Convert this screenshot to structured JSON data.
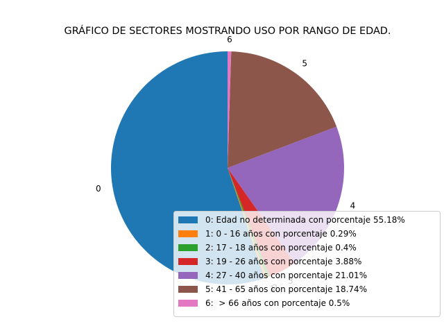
{
  "chart_data": {
    "type": "pie",
    "title": "GRÁFICO DE SECTORES MOSTRANDO USO POR RANGO DE EDAD.",
    "start_angle_deg": 90,
    "direction": "counterclockwise",
    "legend_position": "lower-right",
    "slices": [
      {
        "label": "0",
        "legend": "0: Edad no determinada con porcentaje 55.18%",
        "value": 55.18,
        "color": "#1f77b4"
      },
      {
        "label": "1",
        "legend": "1: 0 - 16 años con porcentaje 0.29%",
        "value": 0.29,
        "color": "#ff7f0e"
      },
      {
        "label": "2",
        "legend": "2: 17 - 18 años con porcentaje 0.4%",
        "value": 0.4,
        "color": "#2ca02c"
      },
      {
        "label": "3",
        "legend": "3: 19 - 26 años con porcentaje 3.88%",
        "value": 3.88,
        "color": "#d62728"
      },
      {
        "label": "4",
        "legend": "4: 27 - 40 años con porcentaje 21.01%",
        "value": 21.01,
        "color": "#9467bd"
      },
      {
        "label": "5",
        "legend": "5: 41 - 65 años con porcentaje 18.74%",
        "value": 18.74,
        "color": "#8c564b"
      },
      {
        "label": "6",
        "legend": "6:  > 66 años con porcentaje 0.5%",
        "value": 0.5,
        "color": "#e377c2"
      }
    ]
  }
}
